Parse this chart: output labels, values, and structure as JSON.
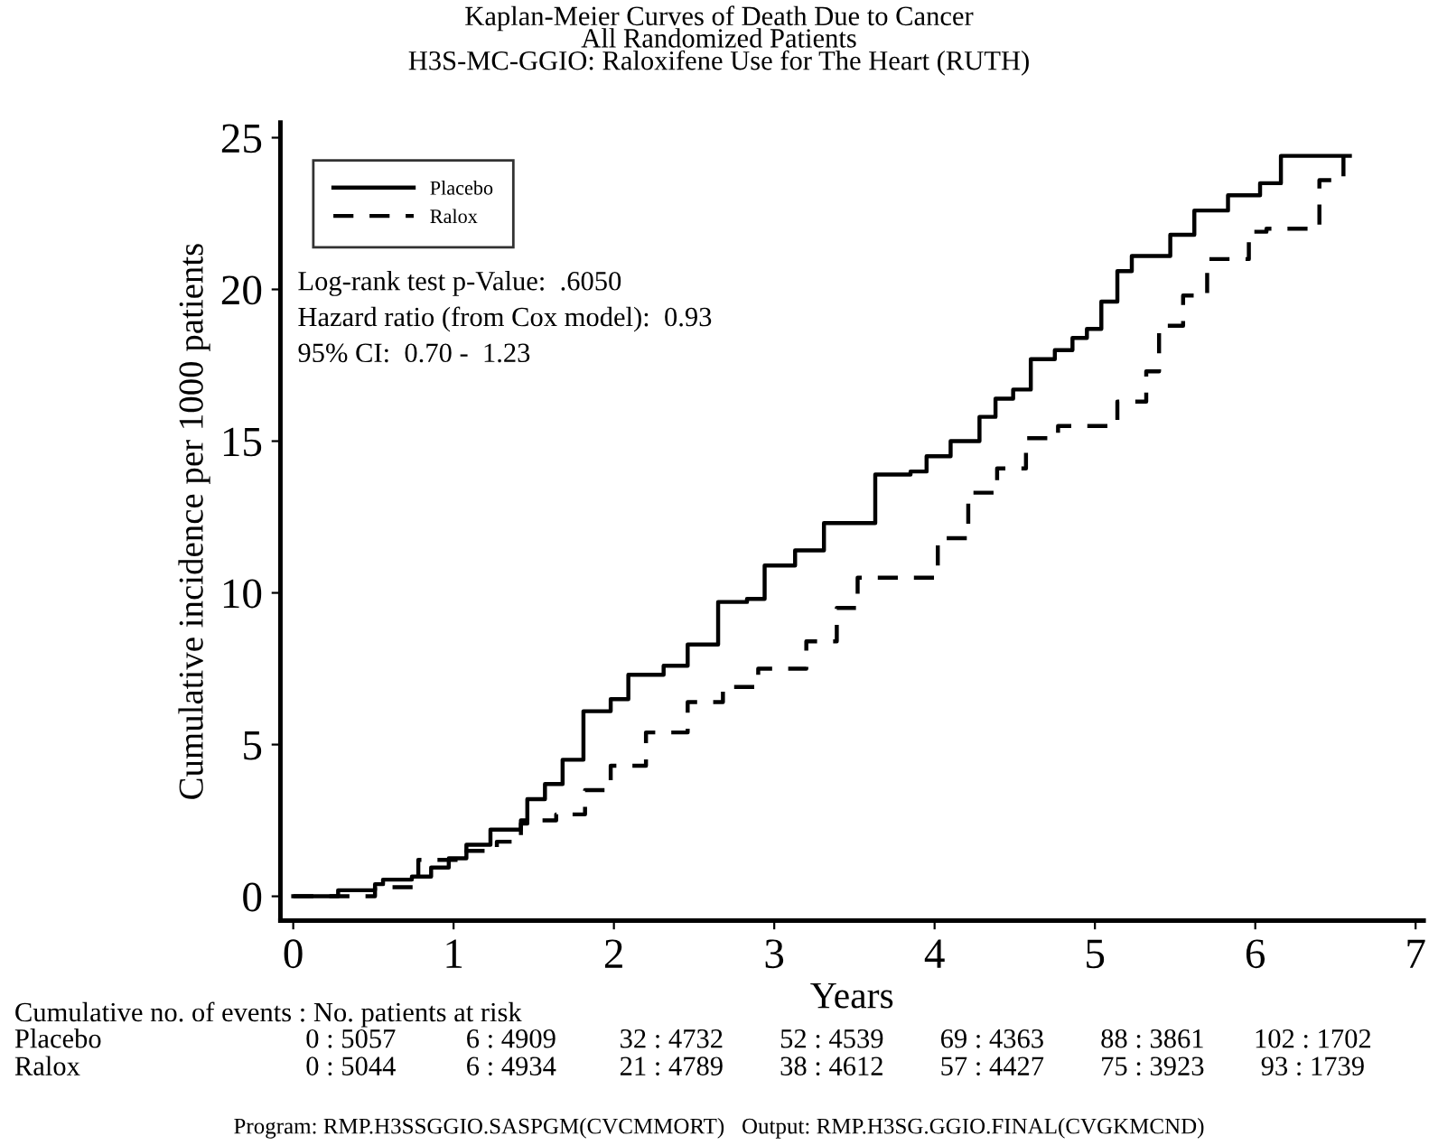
{
  "chart_data": {
    "type": "step",
    "title": "Kaplan-Meier Curves of Death Due to Cancer\nAll Randomized Patients\nH3S-MC-GGIO: Raloxifene Use for The Heart (RUTH)",
    "xlabel": "Years",
    "ylabel": "Cumulative incidence per 1000 patients",
    "xlim": [
      -0.08,
      7.05
    ],
    "xticks": [
      0,
      1,
      2,
      3,
      4,
      5,
      6,
      7
    ],
    "ylim": [
      -0.8,
      25.5
    ],
    "yticks": [
      0,
      5,
      10,
      15,
      20,
      25
    ],
    "grid": false,
    "legend": "top left",
    "series": [
      {
        "name": "Placebo",
        "color": "#000000",
        "line_style": "solid",
        "x": [
          0,
          0.28,
          0.51,
          0.56,
          0.74,
          0.86,
          0.97,
          1.08,
          1.23,
          1.42,
          1.46,
          1.57,
          1.68,
          1.81,
          1.98,
          2.09,
          2.31,
          2.46,
          2.65,
          2.83,
          2.94,
          3.13,
          3.31,
          3.63,
          3.85,
          3.95,
          4.1,
          4.28,
          4.38,
          4.49,
          4.6,
          4.75,
          4.86,
          4.95,
          5.04,
          5.14,
          5.23,
          5.47,
          5.62,
          5.83,
          6.03,
          6.16,
          6.59
        ],
        "values": [
          0,
          0.2,
          0.4,
          0.55,
          0.65,
          0.95,
          1.25,
          1.7,
          2.2,
          2.4,
          3.2,
          3.7,
          4.5,
          6.1,
          6.5,
          7.3,
          7.6,
          8.3,
          9.7,
          9.8,
          10.9,
          11.4,
          12.3,
          13.9,
          14,
          14.5,
          15,
          15.8,
          16.4,
          16.7,
          17.7,
          18,
          18.4,
          18.7,
          19.6,
          20.6,
          21.1,
          21.8,
          22.6,
          23.1,
          23.5,
          24.4,
          24.4
        ]
      },
      {
        "name": "Ralox",
        "color": "#000000",
        "line_style": "dashed",
        "x": [
          0,
          0.51,
          0.78,
          1.08,
          1.27,
          1.42,
          1.64,
          1.82,
          1.98,
          2.2,
          2.46,
          2.68,
          2.9,
          3.2,
          3.39,
          3.52,
          3.75,
          4.02,
          4.21,
          4.39,
          4.57,
          4.77,
          4.95,
          5.14,
          5.32,
          5.4,
          5.55,
          5.7,
          5.96,
          6.07,
          6.4,
          6.55
        ],
        "values": [
          0,
          0.3,
          1.2,
          1.5,
          1.8,
          2.5,
          2.7,
          3.5,
          4.3,
          5.4,
          6.4,
          6.9,
          7.5,
          8.4,
          9.5,
          10.5,
          10.5,
          11.8,
          13.3,
          14.1,
          15.1,
          15.5,
          15.5,
          16.3,
          17.3,
          18.8,
          19.8,
          21,
          21.9,
          22,
          23.6,
          24.4
        ]
      }
    ],
    "annotations": [
      "Log-rank test p-Value:  .6050",
      "Hazard ratio (from Cox model):  0.93",
      "95% CI:  0.70 -  1.23",
      "Cumulative no. of events : No. patients at risk",
      "Placebo",
      "0 : 5057",
      "6 : 4909",
      "32 : 4732",
      "52 : 4539",
      "69 : 4363",
      "88 : 3861",
      "102 : 1702",
      "Ralox",
      "0 : 5044",
      "6 : 4934",
      "21 : 4789",
      "38 : 4612",
      "57 : 4427",
      "75 : 3923",
      "93 : 1739",
      "Program: RMP.H3SSGGIO.SASPGM(CVCMMORT)   Output: RMP.H3SG.GGIO.FINAL(CVGKMCND)"
    ]
  }
}
